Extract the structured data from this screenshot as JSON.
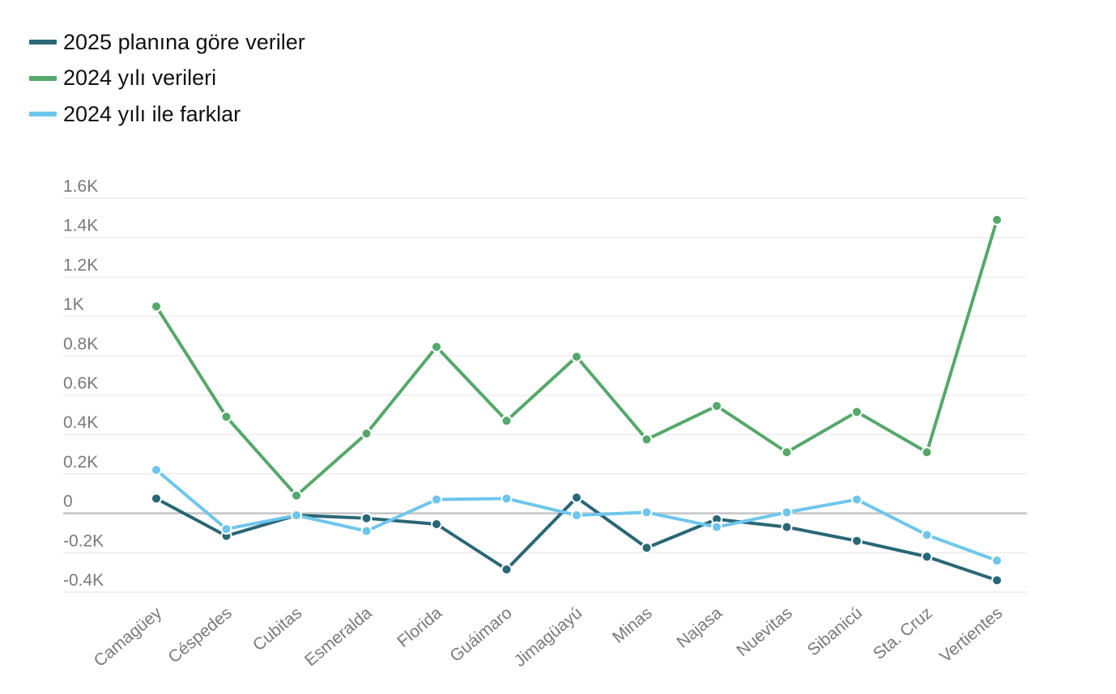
{
  "chart_data": {
    "type": "line",
    "categories": [
      "Camagüey",
      "Céspedes",
      "Cubitas",
      "Esmeralda",
      "Florida",
      "Guáimaro",
      "Jimagüayú",
      "Minas",
      "Najasa",
      "Nuevitas",
      "Sibanicú",
      "Sta. Cruz",
      "Vertientes"
    ],
    "series": [
      {
        "name": "2025 planına göre veriler",
        "color": "#2a6776",
        "values": [
          75,
          -115,
          -10,
          -25,
          -55,
          -285,
          80,
          -175,
          -30,
          -70,
          -140,
          -220,
          -340
        ]
      },
      {
        "name": "2024 yılı verileri",
        "color": "#55a86a",
        "values": [
          1050,
          490,
          90,
          405,
          845,
          470,
          795,
          375,
          545,
          310,
          515,
          310,
          1490
        ]
      },
      {
        "name": "2024 yılı ile farklar",
        "color": "#6ec6ec",
        "values": [
          220,
          -80,
          -10,
          -90,
          70,
          75,
          -10,
          5,
          -70,
          5,
          70,
          -110,
          -240
        ]
      }
    ],
    "y_ticks": [
      {
        "value": 1600,
        "label": "1.6K"
      },
      {
        "value": 1400,
        "label": "1.4K"
      },
      {
        "value": 1200,
        "label": "1.2K"
      },
      {
        "value": 1000,
        "label": "1K"
      },
      {
        "value": 800,
        "label": "0.8K"
      },
      {
        "value": 600,
        "label": "0.6K"
      },
      {
        "value": 400,
        "label": "0.4K"
      },
      {
        "value": 200,
        "label": "0.2K"
      },
      {
        "value": 0,
        "label": "0"
      },
      {
        "value": -200,
        "label": "-0.2K"
      },
      {
        "value": -400,
        "label": "-0.4K"
      }
    ],
    "ylim": [
      -400,
      1600
    ],
    "grid": true,
    "legend_position": "top-left",
    "title": "",
    "xlabel": "",
    "ylabel": ""
  }
}
